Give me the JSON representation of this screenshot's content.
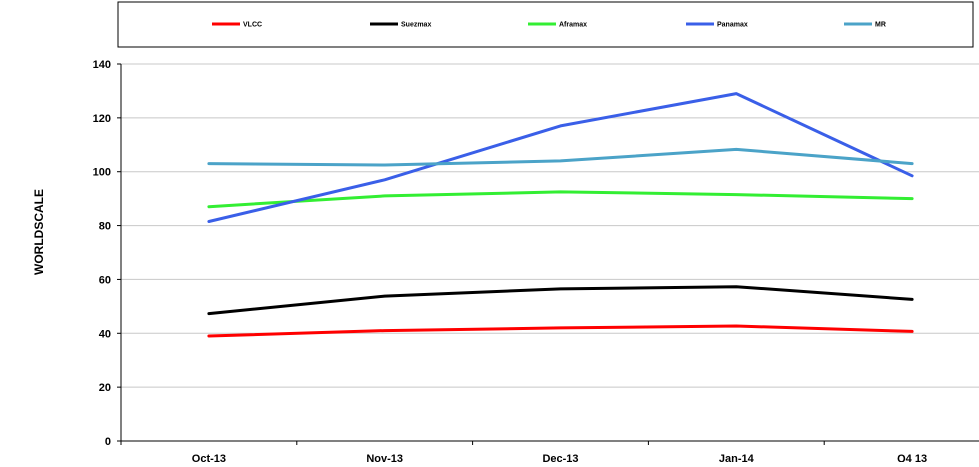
{
  "chart_data": {
    "type": "line",
    "title": "",
    "xlabel": "",
    "ylabel": "WORLDSCALE",
    "categories": [
      "Oct-13",
      "Nov-13",
      "Dec-13",
      "Jan-14",
      "Q4 13"
    ],
    "ylim": [
      0,
      140
    ],
    "yticks": [
      "0",
      "20",
      "40",
      "60",
      "80",
      "100",
      "120",
      "140"
    ],
    "grid": "horizontal",
    "legend_position": "top",
    "series": [
      {
        "name": "VLCC",
        "color": "#ff0000",
        "values": [
          39,
          41,
          42,
          42.7,
          40.7
        ]
      },
      {
        "name": "Suezmax",
        "color": "#000000",
        "values": [
          47.3,
          53.8,
          56.5,
          57.3,
          52.6
        ]
      },
      {
        "name": "Aframax",
        "color": "#33ee33",
        "values": [
          87,
          91,
          92.5,
          91.5,
          90
        ]
      },
      {
        "name": "Panamax",
        "color": "#3a5fe8",
        "values": [
          81.5,
          97,
          117,
          129,
          98.5
        ]
      },
      {
        "name": "MR",
        "color": "#4ba3c8",
        "values": [
          103,
          102.5,
          104,
          108.3,
          103
        ]
      }
    ]
  }
}
